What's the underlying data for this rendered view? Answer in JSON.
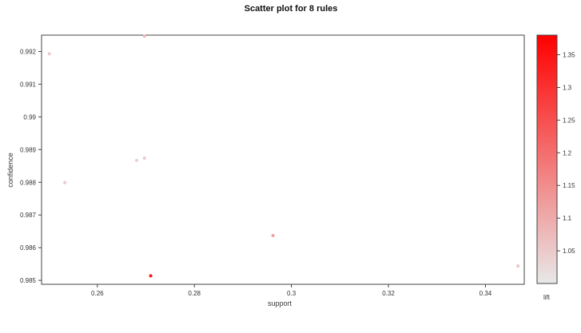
{
  "chart_data": {
    "type": "scatter",
    "title": "Scatter plot for 8 rules",
    "xlabel": "support",
    "ylabel": "confidence",
    "xlim": [
      0.2485,
      0.348
    ],
    "ylim": [
      0.98488,
      0.9925
    ],
    "x_ticks": [
      {
        "value": 0.26,
        "label": "0.26"
      },
      {
        "value": 0.28,
        "label": "0.28"
      },
      {
        "value": 0.3,
        "label": "0.3"
      },
      {
        "value": 0.32,
        "label": "0.32"
      },
      {
        "value": 0.34,
        "label": "0.34"
      }
    ],
    "y_ticks": [
      {
        "value": 0.985,
        "label": "0.985"
      },
      {
        "value": 0.986,
        "label": "0.986"
      },
      {
        "value": 0.987,
        "label": "0.987"
      },
      {
        "value": 0.988,
        "label": "0.988"
      },
      {
        "value": 0.989,
        "label": "0.989"
      },
      {
        "value": 0.99,
        "label": "0.99"
      },
      {
        "value": 0.991,
        "label": "0.991"
      },
      {
        "value": 0.992,
        "label": "0.992"
      }
    ],
    "color_scale": {
      "variable": "lift",
      "label": "lift",
      "range": [
        1.0,
        1.38
      ],
      "low_color": "#e8e8e8",
      "high_color": "#ff0000",
      "ticks": [
        {
          "value": 1.05,
          "label": "1.05"
        },
        {
          "value": 1.1,
          "label": "1.1"
        },
        {
          "value": 1.15,
          "label": "1.15"
        },
        {
          "value": 1.2,
          "label": "1.2"
        },
        {
          "value": 1.25,
          "label": "1.25"
        },
        {
          "value": 1.3,
          "label": "1.3"
        },
        {
          "value": 1.35,
          "label": "1.35"
        }
      ]
    },
    "points": [
      {
        "support": 0.2501,
        "confidence": 0.99193,
        "lift": 1.05
      },
      {
        "support": 0.2533,
        "confidence": 0.98799,
        "lift": 1.05
      },
      {
        "support": 0.2681,
        "confidence": 0.98867,
        "lift": 1.04
      },
      {
        "support": 0.2697,
        "confidence": 0.99247,
        "lift": 1.08
      },
      {
        "support": 0.2697,
        "confidence": 0.98874,
        "lift": 1.05
      },
      {
        "support": 0.271,
        "confidence": 0.98514,
        "lift": 1.35
      },
      {
        "support": 0.2962,
        "confidence": 0.98637,
        "lift": 1.12
      },
      {
        "support": 0.3467,
        "confidence": 0.98544,
        "lift": 1.06
      }
    ]
  }
}
